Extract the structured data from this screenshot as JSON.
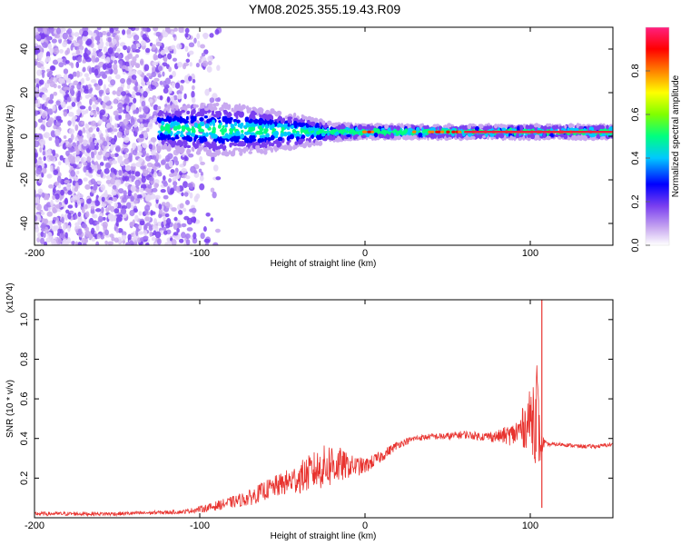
{
  "title": "YM08.2025.355.19.43.R09",
  "chart_data": [
    {
      "type": "heatmap",
      "xlabel": "Height of straight line (km)",
      "ylabel": "Frequency (Hz)",
      "xlim": [
        -200,
        150
      ],
      "ylim": [
        -50,
        50
      ],
      "x_ticks": [
        -200,
        -100,
        0,
        100
      ],
      "x_tick_labels": [
        "-200",
        "-100",
        "0",
        "100"
      ],
      "y_ticks": [
        -40,
        -20,
        0,
        20,
        40
      ],
      "y_tick_labels": [
        "-40",
        "-20",
        "0",
        "20",
        "40"
      ],
      "colorbar": {
        "label": "Normalized spectral amplitude",
        "range": [
          0,
          1
        ],
        "ticks": [
          0,
          0.2,
          0.4,
          0.6,
          0.8
        ],
        "tick_labels": [
          "0.0",
          "0.2",
          "0.4",
          "0.6",
          "0.8"
        ],
        "colormap": [
          "#ffffff",
          "#c8a8f0",
          "#7a3ff0",
          "#0000ff",
          "#00c8ff",
          "#00ff80",
          "#80ff00",
          "#ffff00",
          "#ff8000",
          "#ff0000",
          "#ff2080"
        ]
      },
      "band": {
        "center_freq_hz": 2,
        "x_start": -125,
        "x_end": 150,
        "halfwidth_hz": [
          [
            -125,
            10
          ],
          [
            -90,
            12
          ],
          [
            -60,
            10
          ],
          [
            -30,
            6
          ],
          [
            -18,
            4
          ],
          [
            0,
            3
          ],
          [
            100,
            3
          ],
          [
            150,
            3
          ]
        ]
      }
    },
    {
      "type": "line",
      "xlabel": "Height of straight line (km)",
      "ylabel": "SNR (10 * v/v)",
      "y_multiplier_label": "(x10^4)",
      "xlim": [
        -200,
        150
      ],
      "ylim": [
        0,
        1.1
      ],
      "x_ticks": [
        -200,
        -100,
        0,
        100
      ],
      "x_tick_labels": [
        "-200",
        "-100",
        "0",
        "100"
      ],
      "y_ticks": [
        0.2,
        0.4,
        0.6,
        0.8,
        1.0
      ],
      "y_tick_labels": [
        "0.2",
        "0.4",
        "0.6",
        "0.8",
        "1.0"
      ],
      "color": "#e8332f",
      "series": [
        {
          "name": "SNR",
          "x": [
            -200,
            -150,
            -110,
            -95,
            -80,
            -70,
            -60,
            -50,
            -40,
            -30,
            -20,
            -10,
            0,
            10,
            20,
            30,
            40,
            50,
            60,
            70,
            80,
            90,
            95,
            100,
            104,
            106,
            108,
            110,
            120,
            130,
            140,
            150
          ],
          "y": [
            0.02,
            0.02,
            0.03,
            0.05,
            0.08,
            0.1,
            0.14,
            0.17,
            0.2,
            0.24,
            0.27,
            0.26,
            0.26,
            0.31,
            0.37,
            0.4,
            0.41,
            0.41,
            0.42,
            0.41,
            0.41,
            0.42,
            0.45,
            0.5,
            0.55,
            0.35,
            0.38,
            0.37,
            0.37,
            0.36,
            0.36,
            0.37
          ],
          "noise": [
            0.01,
            0.01,
            0.01,
            0.02,
            0.03,
            0.04,
            0.05,
            0.06,
            0.08,
            0.1,
            0.12,
            0.06,
            0.04,
            0.03,
            0.02,
            0.015,
            0.015,
            0.02,
            0.02,
            0.02,
            0.03,
            0.06,
            0.1,
            0.15,
            0.3,
            0.08,
            0.03,
            0.01,
            0.01,
            0.01,
            0.01,
            0.01
          ]
        }
      ],
      "spike": {
        "x": 107,
        "y": 1.1
      }
    }
  ]
}
